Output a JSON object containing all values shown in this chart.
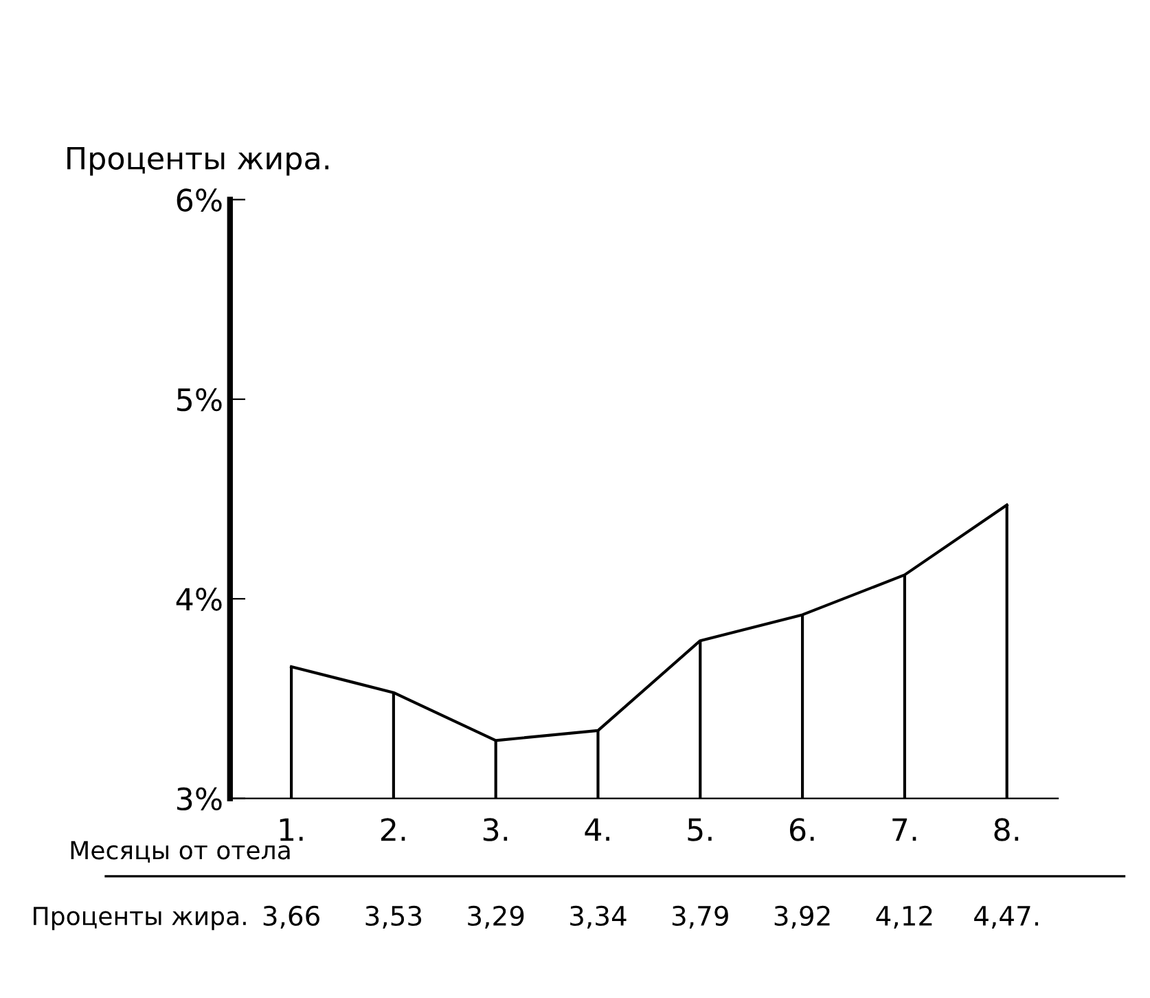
{
  "chart_data": {
    "type": "line",
    "ylabel": "Проценты жира.",
    "xlabel": "Месяцы от отела",
    "categories": [
      "1.",
      "2.",
      "3.",
      "4.",
      "5.",
      "6.",
      "7.",
      "8."
    ],
    "series": [
      {
        "color": "#000000",
        "values": [
          3.66,
          3.53,
          3.29,
          3.34,
          3.79,
          3.92,
          4.12,
          4.47
        ],
        "errors": [
          [
            3,
            3.66
          ],
          [
            3,
            3.53
          ],
          [
            3,
            3.29
          ],
          [
            3,
            3.34
          ],
          [
            3,
            3.79
          ],
          [
            3,
            3.92
          ],
          [
            3,
            4.12
          ],
          [
            3,
            4.47
          ]
        ]
      }
    ],
    "value_labels": [
      "3,66",
      "3,53",
      "3,29",
      "3,34",
      "3,79",
      "3,92",
      "4,12",
      "4,47."
    ],
    "annotations": [
      "Проценты жира."
    ],
    "ylim": [
      3,
      6
    ],
    "yticks": [
      {
        "value": 3,
        "label": "3%"
      },
      {
        "value": 4,
        "label": "4%"
      },
      {
        "value": 5,
        "label": "5%"
      },
      {
        "value": 6,
        "label": "6%"
      }
    ],
    "grid": false,
    "line_style": "solid"
  }
}
